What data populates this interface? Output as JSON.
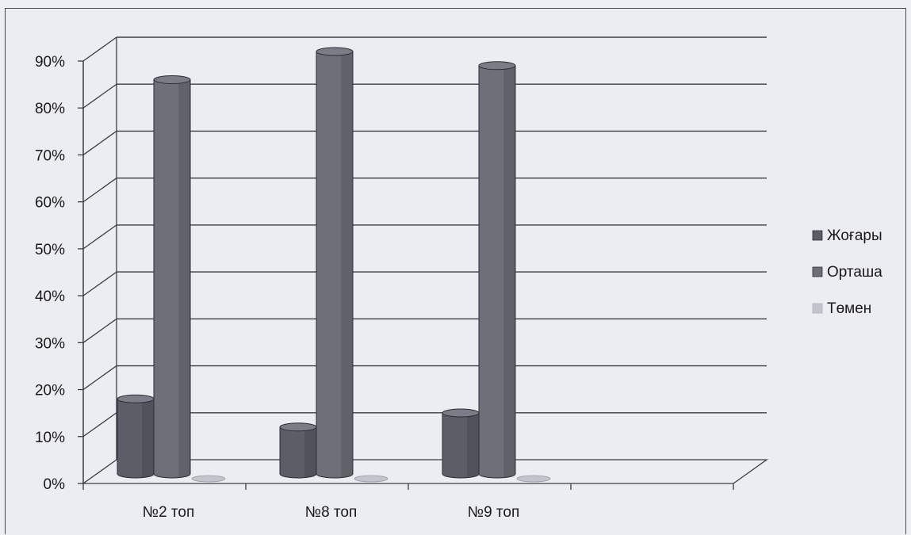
{
  "chart_data": {
    "type": "bar",
    "title": "",
    "xlabel": "",
    "ylabel": "",
    "categories": [
      "№2 топ",
      "№8 топ",
      "№9 топ"
    ],
    "series": [
      {
        "name": "Жоғары",
        "values": [
          16,
          10,
          13
        ],
        "color": "#5d5d68"
      },
      {
        "name": "Орташа",
        "values": [
          84,
          90,
          87
        ],
        "color": "#6f6f79"
      },
      {
        "name": "Төмен",
        "values": [
          0,
          0,
          0
        ],
        "color": "#c4c4cc"
      }
    ],
    "ylim": [
      0,
      90
    ],
    "y_ticks": [
      "0%",
      "10%",
      "20%",
      "30%",
      "40%",
      "50%",
      "60%",
      "70%",
      "80%",
      "90%"
    ],
    "grid": true,
    "legend_position": "right",
    "style": "3d-cylinder"
  }
}
